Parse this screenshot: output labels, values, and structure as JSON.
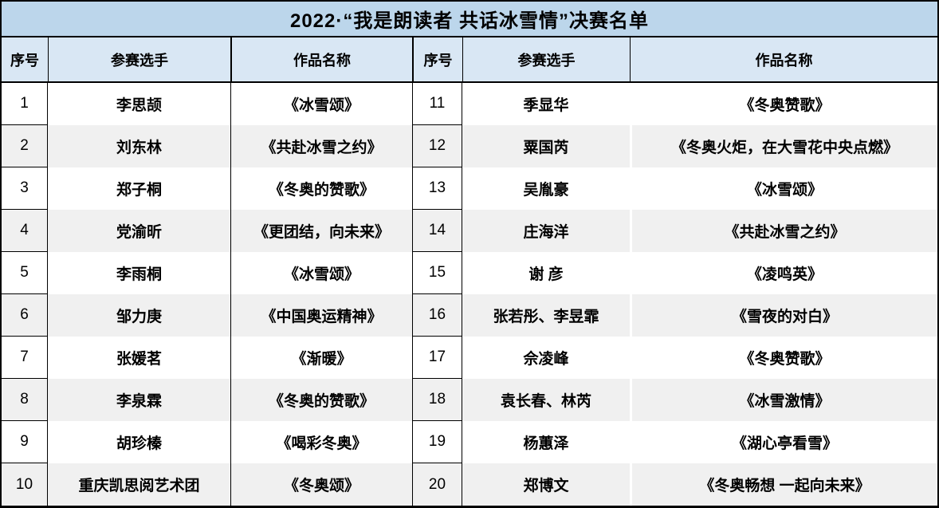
{
  "title": "2022·“我是朗读者 共话冰雪情”决赛名单",
  "columns": {
    "no": "序号",
    "contestant": "参赛选手",
    "work": "作品名称"
  },
  "left_entries": [
    {
      "no": "1",
      "contestant": "李思颉",
      "work": "《冰雪颂》"
    },
    {
      "no": "2",
      "contestant": "刘东林",
      "work": "《共赴冰雪之约》"
    },
    {
      "no": "3",
      "contestant": "郑子桐",
      "work": "《冬奥的赞歌》"
    },
    {
      "no": "4",
      "contestant": "党渝昕",
      "work": "《更团结，向未来》"
    },
    {
      "no": "5",
      "contestant": "李雨桐",
      "work": "《冰雪颂》"
    },
    {
      "no": "6",
      "contestant": "邹力庚",
      "work": "《中国奥运精神》"
    },
    {
      "no": "7",
      "contestant": "张媛茗",
      "work": "《渐暖》"
    },
    {
      "no": "8",
      "contestant": "李泉霖",
      "work": "《冬奥的赞歌》"
    },
    {
      "no": "9",
      "contestant": "胡珍榛",
      "work": "《喝彩冬奥》"
    },
    {
      "no": "10",
      "contestant": "重庆凯思阅艺术团",
      "work": "《冬奥颂》"
    }
  ],
  "right_entries": [
    {
      "no": "11",
      "contestant": "季显华",
      "work": "《冬奥赞歌》"
    },
    {
      "no": "12",
      "contestant": "粟国芮",
      "work": "《冬奥火炬，在大雪花中央点燃》"
    },
    {
      "no": "13",
      "contestant": "吴胤豪",
      "work": "《冰雪颂》"
    },
    {
      "no": "14",
      "contestant": "庄海洋",
      "work": "《共赴冰雪之约》"
    },
    {
      "no": "15",
      "contestant": "谢 彦",
      "work": "《凌鸣英》"
    },
    {
      "no": "16",
      "contestant": "张若彤、李昱霏",
      "work": "《雪夜的对白》"
    },
    {
      "no": "17",
      "contestant": "佘凌峰",
      "work": "《冬奥赞歌》"
    },
    {
      "no": "18",
      "contestant": "袁长春、林芮",
      "work": "《冰雪激情》"
    },
    {
      "no": "19",
      "contestant": "杨蕙泽",
      "work": "《湖心亭看雪》"
    },
    {
      "no": "20",
      "contestant": "郑博文",
      "work": "《冬奥畅想 一起向未来》"
    }
  ],
  "colors": {
    "title_bg": "#BCD6EB",
    "header_bg": "#D9E7F4",
    "band_bg": "#F0F0F0",
    "border": "#000000"
  }
}
